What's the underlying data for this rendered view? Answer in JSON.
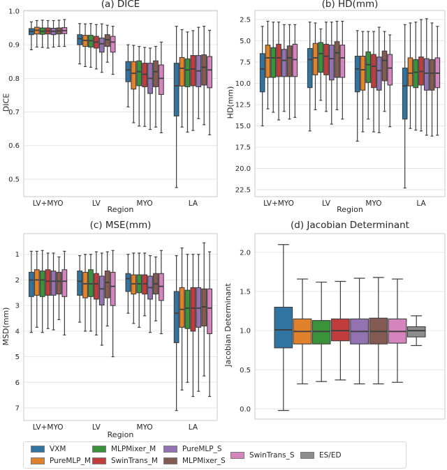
{
  "figure": {
    "background": "#ffffff"
  },
  "edge_color": "#3d3d3d",
  "grid_color": "#e6e6e6",
  "spine_color": "#c9c9c9",
  "legend": {
    "items": [
      {
        "label": "VXM",
        "color": "#3274a1"
      },
      {
        "label": "PureMLP_M",
        "color": "#e1812c"
      },
      {
        "label": "MLPMixer_M",
        "color": "#3a923a"
      },
      {
        "label": "SwinTrans_M",
        "color": "#c03d3e"
      },
      {
        "label": "PureMLP_S",
        "color": "#9372b2"
      },
      {
        "label": "MLPMixer_S",
        "color": "#845b53"
      },
      {
        "label": "SwinTrans_S",
        "color": "#d684bd"
      },
      {
        "label": "ES/ED",
        "color": "#8d8d8d"
      }
    ],
    "columns": [
      [
        0,
        1
      ],
      [
        2,
        3
      ],
      [
        4,
        5
      ],
      [
        6
      ],
      [
        7
      ]
    ]
  },
  "chart_data": [
    {
      "type": "boxplot",
      "title": "(a) DICE",
      "xlabel": "Region",
      "ylabel": "DICE",
      "categories": [
        "LV+MYO",
        "LV",
        "MYO",
        "LA"
      ],
      "ylim": [
        0.448,
        1.002
      ],
      "inverted": false,
      "grid": true,
      "ytick_values": [
        0.5,
        0.6,
        0.7,
        0.8,
        0.9,
        1.0
      ],
      "ytick_labels": [
        "0.5",
        "0.6",
        "0.7",
        "0.8",
        "0.9",
        "1.0"
      ],
      "box_format": [
        "whisker_low",
        "q1",
        "median",
        "q3",
        "whisker_high"
      ],
      "series": [
        {
          "name": "VXM",
          "color": "#3274a1",
          "boxes": [
            [
              0.885,
              0.93,
              0.94,
              0.948,
              0.968
            ],
            [
              0.843,
              0.9,
              0.918,
              0.93,
              0.963
            ],
            [
              0.715,
              0.79,
              0.825,
              0.85,
              0.9
            ],
            [
              0.475,
              0.688,
              0.778,
              0.845,
              0.955
            ]
          ]
        },
        {
          "name": "PureMLP_M",
          "color": "#e1812c",
          "boxes": [
            [
              0.893,
              0.932,
              0.943,
              0.952,
              0.972
            ],
            [
              0.835,
              0.895,
              0.913,
              0.928,
              0.962
            ],
            [
              0.668,
              0.768,
              0.815,
              0.85,
              0.898
            ],
            [
              0.655,
              0.777,
              0.83,
              0.862,
              0.945
            ]
          ]
        },
        {
          "name": "MLPMixer_M",
          "color": "#3a923a",
          "boxes": [
            [
              0.892,
              0.931,
              0.94,
              0.95,
              0.973
            ],
            [
              0.833,
              0.893,
              0.912,
              0.928,
              0.963
            ],
            [
              0.658,
              0.778,
              0.82,
              0.852,
              0.895
            ],
            [
              0.64,
              0.775,
              0.825,
              0.858,
              0.938
            ]
          ]
        },
        {
          "name": "SwinTrans_M",
          "color": "#c03d3e",
          "boxes": [
            [
              0.89,
              0.932,
              0.941,
              0.95,
              0.972
            ],
            [
              0.828,
              0.89,
              0.908,
              0.925,
              0.96
            ],
            [
              0.657,
              0.775,
              0.812,
              0.845,
              0.892
            ],
            [
              0.645,
              0.778,
              0.828,
              0.868,
              0.942
            ]
          ]
        },
        {
          "name": "PureMLP_S",
          "color": "#9372b2",
          "boxes": [
            [
              0.893,
              0.93,
              0.94,
              0.949,
              0.972
            ],
            [
              0.818,
              0.878,
              0.903,
              0.92,
              0.962
            ],
            [
              0.648,
              0.755,
              0.8,
              0.845,
              0.89
            ],
            [
              0.68,
              0.775,
              0.822,
              0.868,
              0.952
            ]
          ]
        },
        {
          "name": "MLPMixer_S",
          "color": "#845b53",
          "boxes": [
            [
              0.895,
              0.932,
              0.941,
              0.95,
              0.973
            ],
            [
              0.848,
              0.895,
              0.915,
              0.93,
              0.958
            ],
            [
              0.655,
              0.775,
              0.82,
              0.852,
              0.895
            ],
            [
              0.662,
              0.78,
              0.833,
              0.87,
              0.955
            ]
          ]
        },
        {
          "name": "SwinTrans_S",
          "color": "#d684bd",
          "boxes": [
            [
              0.895,
              0.933,
              0.942,
              0.951,
              0.975
            ],
            [
              0.812,
              0.878,
              0.908,
              0.925,
              0.955
            ],
            [
              0.638,
              0.752,
              0.8,
              0.84,
              0.908
            ],
            [
              0.632,
              0.772,
              0.825,
              0.865,
              0.943
            ]
          ]
        }
      ]
    },
    {
      "type": "boxplot",
      "title": "(b) HD(mm)",
      "xlabel": "Region",
      "ylabel": "HD(mm)",
      "categories": [
        "LV+MYO",
        "LV",
        "MYO",
        "LA"
      ],
      "ylim": [
        1.43,
        23.32
      ],
      "inverted": true,
      "grid": true,
      "ytick_values": [
        2.5,
        5.0,
        7.5,
        10.0,
        12.5,
        15.0,
        17.5,
        20.0,
        22.5
      ],
      "ytick_labels": [
        "2.5",
        "5.0",
        "7.5",
        "10.0",
        "12.5",
        "15.0",
        "17.5",
        "20.0",
        "22.5"
      ],
      "box_format": [
        "whisker_low",
        "q1",
        "median",
        "q3",
        "whisker_high"
      ],
      "series": [
        {
          "name": "VXM",
          "color": "#3274a1",
          "boxes": [
            [
              3.3,
              6.5,
              8.3,
              11.0,
              15.0
            ],
            [
              2.8,
              5.9,
              7.2,
              10.5,
              15.6
            ],
            [
              3.8,
              6.8,
              8.3,
              11.0,
              16.8
            ],
            [
              3.1,
              8.2,
              10.3,
              14.2,
              22.3
            ]
          ]
        },
        {
          "name": "PureMLP_M",
          "color": "#e1812c",
          "boxes": [
            [
              2.7,
              5.5,
              7.0,
              9.3,
              13.0
            ],
            [
              2.9,
              5.3,
              7.0,
              9.0,
              13.1
            ],
            [
              3.9,
              6.8,
              8.4,
              10.8,
              15.7
            ],
            [
              2.9,
              7.0,
              8.8,
              10.3,
              15.3
            ]
          ]
        },
        {
          "name": "MLPMixer_M",
          "color": "#3a923a",
          "boxes": [
            [
              2.8,
              5.8,
              7.0,
              9.3,
              13.4
            ],
            [
              3.6,
              5.2,
              6.5,
              8.7,
              12.0
            ],
            [
              3.9,
              6.3,
              7.8,
              9.9,
              14.2
            ],
            [
              2.8,
              7.2,
              8.7,
              10.5,
              15.5
            ]
          ]
        },
        {
          "name": "SwinTrans_M",
          "color": "#c03d3e",
          "boxes": [
            [
              2.8,
              5.4,
              7.0,
              9.2,
              14.3
            ],
            [
              2.8,
              5.4,
              6.8,
              9.0,
              13.3
            ],
            [
              3.9,
              6.6,
              8.0,
              10.5,
              15.7
            ],
            [
              2.5,
              6.9,
              8.6,
              10.2,
              15.6
            ]
          ]
        },
        {
          "name": "PureMLP_S",
          "color": "#9372b2",
          "boxes": [
            [
              3.1,
              6.0,
              7.3,
              9.2,
              13.3
            ],
            [
              2.8,
              5.5,
              7.1,
              9.6,
              14.8
            ],
            [
              3.4,
              6.9,
              8.5,
              10.8,
              15.8
            ],
            [
              2.4,
              7.1,
              8.8,
              10.8,
              16.1
            ]
          ]
        },
        {
          "name": "MLPMixer_S",
          "color": "#845b53",
          "boxes": [
            [
              3.1,
              5.6,
              7.0,
              9.2,
              14.2
            ],
            [
              2.7,
              5.1,
              6.4,
              9.3,
              13.1
            ],
            [
              3.9,
              6.2,
              7.3,
              9.7,
              13.3
            ],
            [
              2.9,
              7.2,
              8.8,
              10.8,
              16.2
            ]
          ]
        },
        {
          "name": "SwinTrans_S",
          "color": "#d684bd",
          "boxes": [
            [
              3.1,
              5.4,
              7.2,
              9.2,
              14.0
            ],
            [
              2.7,
              5.5,
              7.0,
              9.3,
              14.2
            ],
            [
              4.3,
              6.6,
              8.2,
              10.2,
              15.1
            ],
            [
              3.3,
              7.0,
              8.8,
              10.5,
              16.1
            ]
          ]
        }
      ]
    },
    {
      "type": "boxplot",
      "title": "(c) MSE(mm)",
      "xlabel": "Region",
      "ylabel": "MSD(mm)",
      "categories": [
        "LV+MYO",
        "LV",
        "MYO",
        "LA"
      ],
      "ylim": [
        0.19,
        7.49
      ],
      "inverted": true,
      "grid": true,
      "ytick_values": [
        1,
        2,
        3,
        4,
        5,
        6,
        7
      ],
      "ytick_labels": [
        "1",
        "2",
        "3",
        "4",
        "5",
        "6",
        "7"
      ],
      "box_format": [
        "whisker_low",
        "q1",
        "median",
        "q3",
        "whisker_high"
      ],
      "series": [
        {
          "name": "VXM",
          "color": "#3274a1",
          "boxes": [
            [
              0.88,
              1.7,
              2.0,
              2.65,
              4.05
            ],
            [
              1.05,
              1.65,
              2.05,
              2.6,
              3.65
            ],
            [
              1.0,
              1.75,
              1.95,
              2.45,
              3.3
            ],
            [
              1.05,
              2.45,
              3.3,
              4.45,
              7.1
            ]
          ]
        },
        {
          "name": "PureMLP_M",
          "color": "#e1812c",
          "boxes": [
            [
              0.88,
              1.6,
              2.0,
              2.6,
              3.85
            ],
            [
              1.0,
              1.7,
              2.15,
              2.7,
              4.0
            ],
            [
              0.95,
              1.8,
              2.15,
              2.55,
              3.7
            ],
            [
              0.75,
              2.3,
              3.15,
              3.85,
              6.3
            ]
          ]
        },
        {
          "name": "MLPMixer_M",
          "color": "#3a923a",
          "boxes": [
            [
              0.85,
              1.65,
              2.0,
              2.65,
              4.05
            ],
            [
              1.0,
              1.6,
              2.15,
              2.65,
              4.0
            ],
            [
              0.95,
              1.8,
              2.15,
              2.5,
              3.85
            ],
            [
              1.0,
              2.4,
              3.1,
              3.9,
              6.0
            ]
          ]
        },
        {
          "name": "SwinTrans_M",
          "color": "#c03d3e",
          "boxes": [
            [
              0.95,
              1.6,
              2.05,
              2.6,
              3.9
            ],
            [
              0.9,
              1.75,
              2.15,
              2.75,
              4.15
            ],
            [
              0.95,
              1.8,
              2.15,
              2.55,
              3.4
            ],
            [
              1.0,
              2.3,
              3.1,
              4.0,
              6.55
            ]
          ]
        },
        {
          "name": "PureMLP_S",
          "color": "#9372b2",
          "boxes": [
            [
              0.95,
              1.65,
              2.05,
              2.6,
              3.95
            ],
            [
              0.95,
              1.85,
              2.35,
              2.98,
              4.55
            ],
            [
              1.05,
              1.85,
              2.3,
              2.75,
              4.05
            ],
            [
              1.0,
              2.3,
              3.1,
              3.85,
              6.35
            ]
          ]
        },
        {
          "name": "MLPMixer_S",
          "color": "#845b53",
          "boxes": [
            [
              1.1,
              1.7,
              2.05,
              2.55,
              3.55
            ],
            [
              0.9,
              1.65,
              2.1,
              2.7,
              3.8
            ],
            [
              1.1,
              1.75,
              2.15,
              2.55,
              3.6
            ],
            [
              0.55,
              2.35,
              3.05,
              3.8,
              5.75
            ]
          ]
        },
        {
          "name": "SwinTrans_S",
          "color": "#d684bd",
          "boxes": [
            [
              0.88,
              1.6,
              2.05,
              2.65,
              4.15
            ],
            [
              0.85,
              1.7,
              2.25,
              3.0,
              5.0
            ],
            [
              0.85,
              1.75,
              2.25,
              2.8,
              4.1
            ],
            [
              0.9,
              2.35,
              3.1,
              4.1,
              6.55
            ]
          ]
        }
      ]
    },
    {
      "type": "boxplot",
      "title": "(d) Jacobian Determinant",
      "xlabel": "",
      "ylabel": "Jacobian Determinant",
      "categories": [
        ""
      ],
      "ylim": [
        -0.13,
        2.24
      ],
      "inverted": false,
      "grid": true,
      "ytick_values": [
        0.0,
        0.5,
        1.0,
        1.5,
        2.0
      ],
      "ytick_labels": [
        "0.0",
        "0.5",
        "1.0",
        "1.5",
        "2.0"
      ],
      "box_format": [
        "whisker_low",
        "q1",
        "median",
        "q3",
        "whisker_high"
      ],
      "series": [
        {
          "name": "VXM",
          "color": "#3274a1",
          "boxes": [
            [
              -0.02,
              0.78,
              1.01,
              1.3,
              2.1
            ]
          ]
        },
        {
          "name": "PureMLP_M",
          "color": "#e1812c",
          "boxes": [
            [
              0.32,
              0.83,
              0.99,
              1.15,
              1.66
            ]
          ]
        },
        {
          "name": "MLPMixer_M",
          "color": "#3a923a",
          "boxes": [
            [
              0.35,
              0.83,
              0.99,
              1.13,
              1.62
            ]
          ]
        },
        {
          "name": "SwinTrans_M",
          "color": "#c03d3e",
          "boxes": [
            [
              0.37,
              0.87,
              1.0,
              1.15,
              1.63
            ]
          ]
        },
        {
          "name": "PureMLP_S",
          "color": "#9372b2",
          "boxes": [
            [
              0.32,
              0.83,
              0.99,
              1.15,
              1.67
            ]
          ]
        },
        {
          "name": "MLPMixer_S",
          "color": "#845b53",
          "boxes": [
            [
              0.32,
              0.83,
              0.99,
              1.16,
              1.68
            ]
          ]
        },
        {
          "name": "SwinTrans_S",
          "color": "#d684bd",
          "boxes": [
            [
              0.34,
              0.84,
              0.99,
              1.15,
              1.66
            ]
          ]
        },
        {
          "name": "ES/ED",
          "color": "#8d8d8d",
          "boxes": [
            [
              0.81,
              0.92,
              1.0,
              1.05,
              1.19
            ]
          ]
        }
      ]
    }
  ]
}
